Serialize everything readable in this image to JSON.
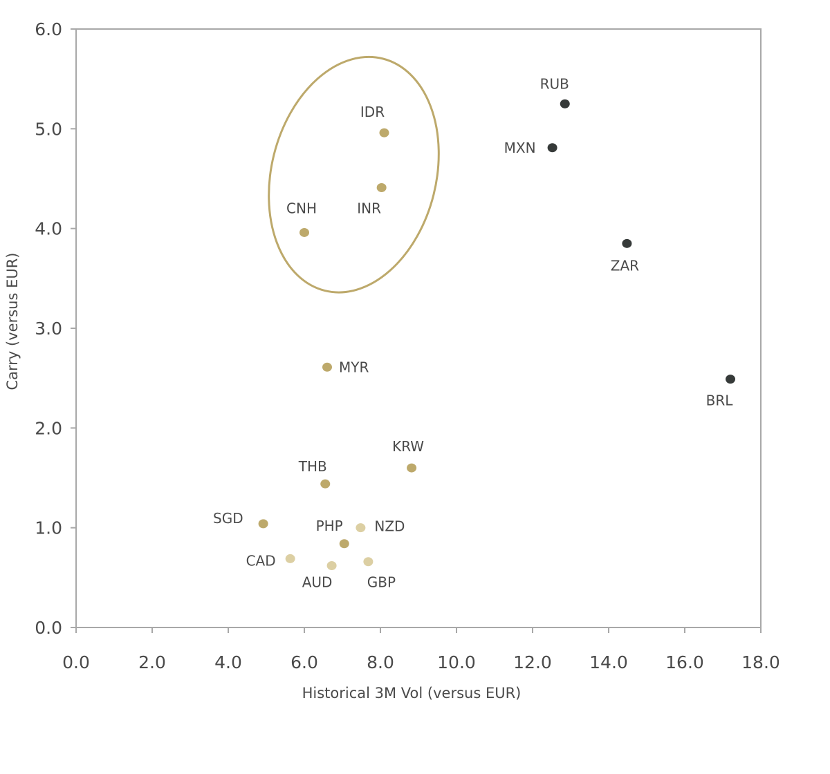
{
  "chart_data": {
    "type": "scatter",
    "title": "",
    "xlabel": "Historical 3M Vol (versus EUR)",
    "ylabel": "Carry (versus EUR)",
    "xlim": [
      0,
      18
    ],
    "ylim": [
      0,
      6
    ],
    "x_ticks": [
      "0.0",
      "2.0",
      "4.0",
      "6.0",
      "8.0",
      "10.0",
      "12.0",
      "14.0",
      "16.0",
      "18.0"
    ],
    "y_ticks": [
      "0.0",
      "1.0",
      "2.0",
      "3.0",
      "4.0",
      "5.0",
      "6.0"
    ],
    "grid": false,
    "colors": {
      "dark": "#363a39",
      "gold": "#bda96b",
      "light": "#dccfa3",
      "ellipse": "#bda96b",
      "axis": "#a8a8a8"
    },
    "points": [
      {
        "label": "RUB",
        "x": 12.85,
        "y": 5.25,
        "color": "dark"
      },
      {
        "label": "MXN",
        "x": 12.52,
        "y": 4.81,
        "color": "dark"
      },
      {
        "label": "ZAR",
        "x": 14.48,
        "y": 3.85,
        "color": "dark"
      },
      {
        "label": "BRL",
        "x": 17.2,
        "y": 2.49,
        "color": "dark"
      },
      {
        "label": "IDR",
        "x": 8.1,
        "y": 4.96,
        "color": "gold"
      },
      {
        "label": "INR",
        "x": 8.03,
        "y": 4.41,
        "color": "gold"
      },
      {
        "label": "CNH",
        "x": 6.0,
        "y": 3.96,
        "color": "gold"
      },
      {
        "label": "MYR",
        "x": 6.6,
        "y": 2.61,
        "color": "gold"
      },
      {
        "label": "KRW",
        "x": 8.82,
        "y": 1.6,
        "color": "gold"
      },
      {
        "label": "THB",
        "x": 6.55,
        "y": 1.44,
        "color": "gold"
      },
      {
        "label": "SGD",
        "x": 4.92,
        "y": 1.04,
        "color": "gold"
      },
      {
        "label": "PHP",
        "x": 7.05,
        "y": 0.84,
        "color": "gold"
      },
      {
        "label": "NZD",
        "x": 7.48,
        "y": 1.0,
        "color": "light"
      },
      {
        "label": "CAD",
        "x": 5.63,
        "y": 0.69,
        "color": "light"
      },
      {
        "label": "AUD",
        "x": 6.72,
        "y": 0.62,
        "color": "light"
      },
      {
        "label": "GBP",
        "x": 7.68,
        "y": 0.66,
        "color": "light"
      }
    ],
    "highlight_group": [
      "IDR",
      "INR",
      "CNH"
    ]
  }
}
